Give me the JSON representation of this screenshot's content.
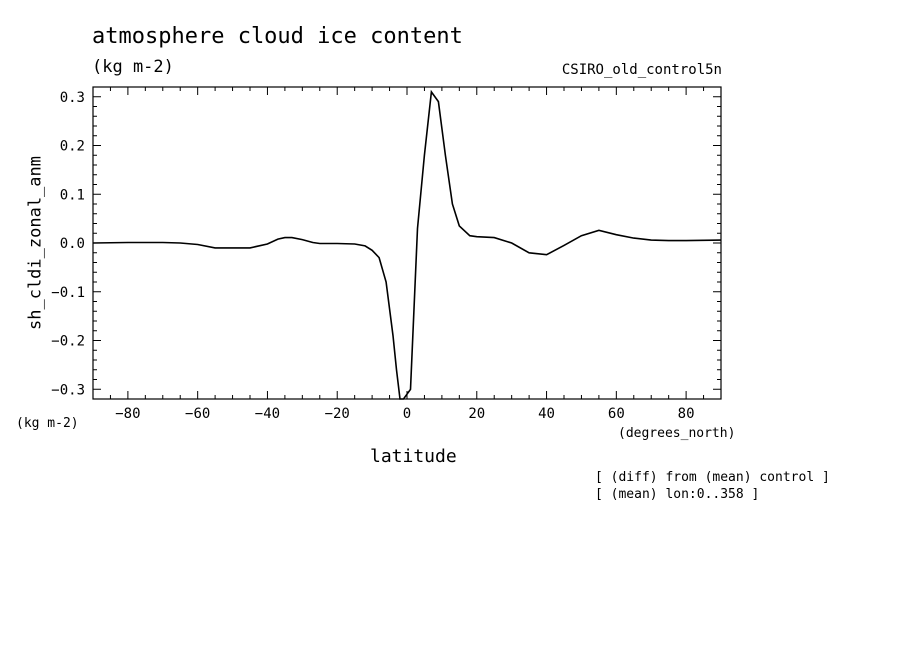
{
  "chart_data": {
    "type": "line",
    "title": "atmosphere cloud ice content",
    "units": "(kg m-2)",
    "dataset_label": "CSIRO_old_control5n",
    "ylabel": "sh_cldi_zonal_anm",
    "y_units": "(kg m-2)",
    "xlabel": "latitude",
    "x_units": "(degrees_north)",
    "notes": [
      "[ (diff) from (mean) control ]",
      "[ (mean) lon:0..358 ]"
    ],
    "xlim": [
      -90,
      90
    ],
    "ylim": [
      -0.32,
      0.32
    ],
    "x_ticks": [
      -80,
      -60,
      -40,
      -20,
      0,
      20,
      40,
      60,
      80
    ],
    "y_ticks": [
      0.3,
      0.2,
      0.1,
      0.0,
      -0.1,
      -0.2,
      -0.3
    ],
    "x_tick_labels": [
      "−80",
      "−60",
      "−40",
      "−20",
      "0",
      "20",
      "40",
      "60",
      "80"
    ],
    "y_tick_labels": [
      "0.3",
      "0.2",
      "0.1",
      "0.0",
      "−0.1",
      "−0.2",
      "−0.3"
    ],
    "series": [
      {
        "x": [
          -90,
          -80,
          -70,
          -65,
          -60,
          -55,
          -50,
          -45,
          -40,
          -37,
          -35,
          -33,
          -30,
          -27,
          -25,
          -22,
          -20,
          -15,
          -12,
          -10,
          -8,
          -6,
          -4,
          -3,
          -2,
          -1,
          1,
          3,
          5,
          7,
          9,
          11,
          13,
          15,
          18,
          20,
          25,
          30,
          35,
          40,
          45,
          50,
          55,
          60,
          65,
          70,
          75,
          80,
          90
        ],
        "y": [
          0.0,
          0.001,
          0.001,
          0.0,
          -0.003,
          -0.01,
          -0.01,
          -0.01,
          -0.002,
          0.008,
          0.011,
          0.011,
          0.007,
          0.001,
          -0.001,
          -0.001,
          -0.001,
          -0.002,
          -0.006,
          -0.015,
          -0.03,
          -0.08,
          -0.19,
          -0.26,
          -0.32,
          -0.32,
          -0.3,
          0.03,
          0.18,
          0.31,
          0.29,
          0.18,
          0.08,
          0.035,
          0.015,
          0.013,
          0.011,
          0.0,
          -0.02,
          -0.024,
          -0.005,
          0.015,
          0.026,
          0.017,
          0.01,
          0.006,
          0.005,
          0.005,
          0.006
        ]
      }
    ]
  }
}
